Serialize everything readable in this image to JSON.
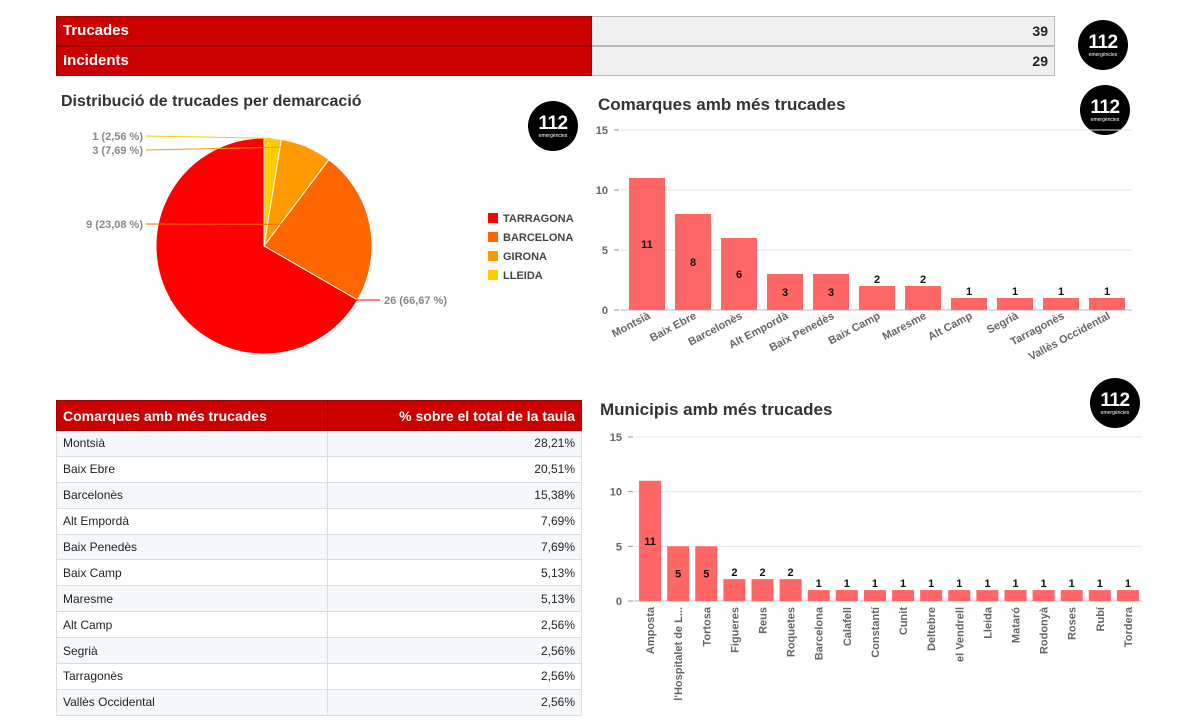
{
  "kpis": [
    {
      "label": "Trucades",
      "value": "39"
    },
    {
      "label": "Incidents",
      "value": "29"
    }
  ],
  "logo": {
    "number": "112",
    "subtitle": "emergències"
  },
  "colors": {
    "header_red": "#cc0000",
    "bar": "#ff6666",
    "tarragona": "#ff0000",
    "barcelona": "#ff6600",
    "girona": "#ff9900",
    "lleida": "#ffcc00"
  },
  "chart_data": [
    {
      "type": "pie",
      "title": "Distribució de trucades per demarcació",
      "categories": [
        "TARRAGONA",
        "BARCELONA",
        "GIRONA",
        "LLEIDA"
      ],
      "values": [
        26,
        9,
        3,
        1
      ],
      "data_labels": [
        "26 (66,67 %)",
        "9 (23,08 %)",
        "3 (7,69 %)",
        "1 (2,56 %)"
      ],
      "legend": "right"
    },
    {
      "type": "bar",
      "title": "Comarques amb més trucades",
      "categories": [
        "Montsià",
        "Baix Ebre",
        "Barcelonès",
        "Alt Empordà",
        "Baix Penedès",
        "Baix Camp",
        "Maresme",
        "Alt Camp",
        "Segrià",
        "Tarragonès",
        "Vallès Occidental"
      ],
      "values": [
        11,
        8,
        6,
        3,
        3,
        2,
        2,
        1,
        1,
        1,
        1
      ],
      "ylim": [
        0,
        15
      ],
      "yticks": [
        0,
        5,
        10,
        15
      ]
    },
    {
      "type": "table",
      "title": "Comarques amb més trucades",
      "columns": [
        "Comarques amb més trucades",
        "% sobre el total de la taula"
      ],
      "rows": [
        [
          "Montsià",
          "28,21%"
        ],
        [
          "Baix Ebre",
          "20,51%"
        ],
        [
          "Barcelonès",
          "15,38%"
        ],
        [
          "Alt Empordà",
          "7,69%"
        ],
        [
          "Baix Penedès",
          "7,69%"
        ],
        [
          "Baix Camp",
          "5,13%"
        ],
        [
          "Maresme",
          "5,13%"
        ],
        [
          "Alt Camp",
          "2,56%"
        ],
        [
          "Segrià",
          "2,56%"
        ],
        [
          "Tarragonès",
          "2,56%"
        ],
        [
          "Vallès Occidental",
          "2,56%"
        ]
      ]
    },
    {
      "type": "bar",
      "title": "Municipis amb més trucades",
      "categories": [
        "Amposta",
        "l'Hospitalet de L...",
        "Tortosa",
        "Figueres",
        "Reus",
        "Roquetes",
        "Barcelona",
        "Calafell",
        "Constantí",
        "Cunit",
        "Deltebre",
        "el Vendrell",
        "Lleida",
        "Mataró",
        "Rodonyà",
        "Roses",
        "Rubí",
        "Tordera"
      ],
      "values": [
        11,
        5,
        5,
        2,
        2,
        2,
        1,
        1,
        1,
        1,
        1,
        1,
        1,
        1,
        1,
        1,
        1,
        1
      ],
      "ylim": [
        0,
        15
      ],
      "yticks": [
        0,
        5,
        10,
        15
      ]
    }
  ]
}
